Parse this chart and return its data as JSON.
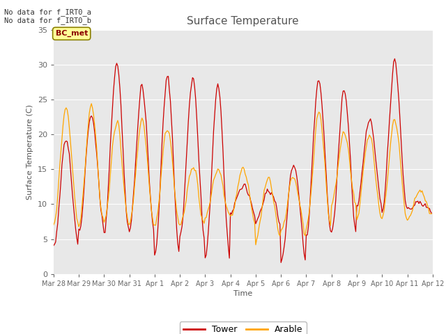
{
  "title": "Surface Temperature",
  "xlabel": "Time",
  "ylabel": "Surface Temperature (C)",
  "ylim": [
    0,
    35
  ],
  "yticks": [
    0,
    5,
    10,
    15,
    20,
    25,
    30,
    35
  ],
  "plot_bg_color": "#e8e8e8",
  "fig_bg": "#ffffff",
  "tower_color": "#cc0000",
  "arable_color": "#ffa500",
  "legend_entries": [
    "Tower",
    "Arable"
  ],
  "annotation_text": "No data for f_IRT0_a\nNo data for f_IRT0_b",
  "bc_met_label": "BC_met",
  "bc_met_bg": "#ffff99",
  "bc_met_border": "#8B8000",
  "bc_met_text_color": "#8B0000",
  "grid_color": "#ffffff",
  "tick_label_color": "#666666",
  "title_color": "#555555",
  "label_color": "#555555",
  "tower_lw": 0.9,
  "arable_lw": 0.9
}
